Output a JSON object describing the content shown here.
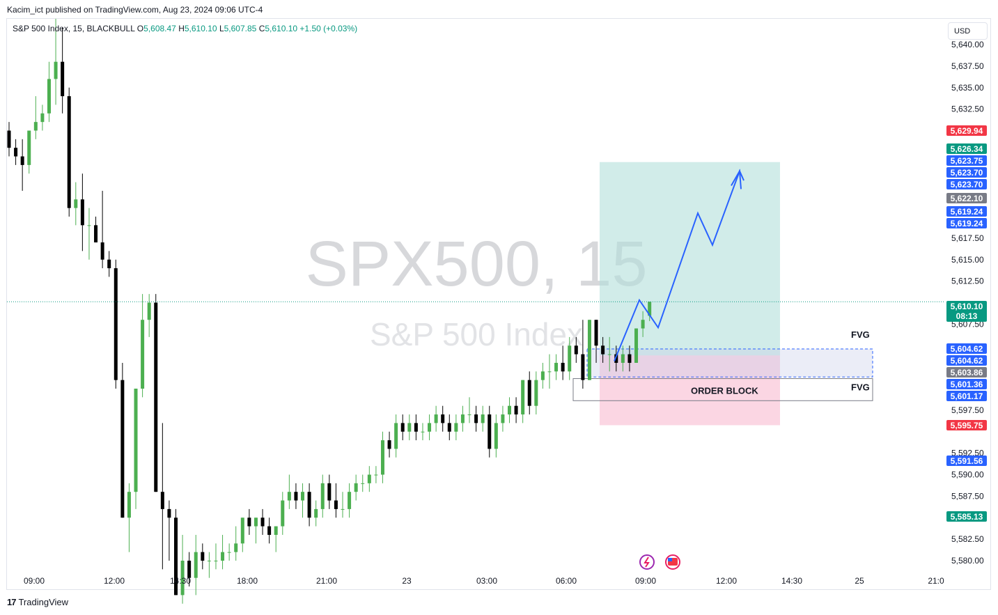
{
  "header": {
    "caption": "Kacim_ict published on TradingView.com, Aug 23, 2024 09:06 UTC-4",
    "symbol": "S&P 500 Index, 15, BLACKBULL",
    "o_label": "O",
    "o_value": "5,608.47",
    "h_label": "H",
    "h_value": "5,610.10",
    "l_label": "L",
    "l_value": "5,607.85",
    "c_label": "C",
    "c_value": "5,610.10",
    "change": "+1.50 (+0.03%)"
  },
  "currency_button": "USD",
  "footer": {
    "brand": "TradingView",
    "logo": "tv-logo-icon"
  },
  "watermark": {
    "line1": "SPX500, 15",
    "line2": "S&P 500 Index"
  },
  "chart_data": {
    "type": "candlestick",
    "symbol": "SPX500",
    "interval": "15",
    "y_range": [
      5578.5,
      5643.0
    ],
    "y_ticks": [
      "5,640.00",
      "5,637.50",
      "5,635.00",
      "5,632.50",
      "5,617.50",
      "5,615.00",
      "5,612.50",
      "5,607.50",
      "5,597.50",
      "5,592.50",
      "5,590.00",
      "5,587.50",
      "5,582.50",
      "5,580.00"
    ],
    "x_ticks": [
      "09:00",
      "12:00",
      "14:30",
      "18:00",
      "21:00",
      "23",
      "03:00",
      "06:00",
      "09:00",
      "12:00",
      "14:30",
      "25",
      "21:0"
    ],
    "candles": [
      [
        5630,
        5631,
        5627,
        5628
      ],
      [
        5628,
        5629,
        5626,
        5627
      ],
      [
        5627,
        5629,
        5623,
        5626
      ],
      [
        5626,
        5630,
        5625,
        5630
      ],
      [
        5630,
        5634,
        5629,
        5631
      ],
      [
        5631,
        5633,
        5630,
        5632
      ],
      [
        5632,
        5638,
        5631,
        5636
      ],
      [
        5636,
        5643,
        5633,
        5638
      ],
      [
        5638,
        5642,
        5632,
        5634
      ],
      [
        5634,
        5635,
        5620,
        5621
      ],
      [
        5621,
        5624,
        5619,
        5622
      ],
      [
        5622,
        5625,
        5616,
        5619
      ],
      [
        5619,
        5621,
        5615,
        5619
      ],
      [
        5619,
        5620,
        5617,
        5617
      ],
      [
        5617,
        5623,
        5614,
        5615
      ],
      [
        5615,
        5616,
        5613,
        5614
      ],
      [
        5614,
        5615,
        5600,
        5601
      ],
      [
        5601,
        5603,
        5585,
        5585
      ],
      [
        5585,
        5589,
        5581,
        5588
      ],
      [
        5588,
        5600,
        5586,
        5600
      ],
      [
        5600,
        5611,
        5599,
        5608
      ],
      [
        5608,
        5611,
        5606,
        5610
      ],
      [
        5610,
        5611,
        5588,
        5588
      ],
      [
        5588,
        5596,
        5579,
        5586
      ],
      [
        5586,
        5587,
        5580,
        5585
      ],
      [
        5585,
        5586,
        5576,
        5576
      ],
      [
        5576,
        5583,
        5575,
        5580
      ],
      [
        5580,
        5581,
        5577,
        5578
      ],
      [
        5578,
        5583,
        5576,
        5581
      ],
      [
        5581,
        5582,
        5579,
        5580
      ],
      [
        5580,
        5581,
        5578,
        5580
      ],
      [
        5580,
        5582,
        5579,
        5580
      ],
      [
        5580,
        5583,
        5579,
        5581
      ],
      [
        5581,
        5582,
        5580,
        5581
      ],
      [
        5581,
        5584,
        5580,
        5582
      ],
      [
        5582,
        5585,
        5581,
        5585
      ],
      [
        5585,
        5586,
        5583,
        5584
      ],
      [
        5584,
        5585,
        5582,
        5585
      ],
      [
        5585,
        5586,
        5583,
        5584
      ],
      [
        5584,
        5585,
        5582,
        5583
      ],
      [
        5583,
        5584,
        5581,
        5584
      ],
      [
        5584,
        5588,
        5583,
        5587
      ],
      [
        5587,
        5590,
        5586,
        5588
      ],
      [
        5588,
        5589,
        5586,
        5587
      ],
      [
        5587,
        5589,
        5585,
        5588
      ],
      [
        5588,
        5589,
        5584,
        5585
      ],
      [
        5585,
        5587,
        5584,
        5586
      ],
      [
        5586,
        5590,
        5585,
        5589
      ],
      [
        5589,
        5590,
        5586,
        5587
      ],
      [
        5587,
        5589,
        5585,
        5586
      ],
      [
        5586,
        5588,
        5585,
        5586
      ],
      [
        5586,
        5589,
        5585,
        5588
      ],
      [
        5588,
        5590,
        5587,
        5589
      ],
      [
        5589,
        5590,
        5588,
        5589
      ],
      [
        5589,
        5591,
        5588,
        5590
      ],
      [
        5590,
        5591,
        5589,
        5590
      ],
      [
        5590,
        5595,
        5589,
        5594
      ],
      [
        5594,
        5595,
        5592,
        5593
      ],
      [
        5593,
        5597,
        5592,
        5596
      ],
      [
        5596,
        5597,
        5594,
        5595
      ],
      [
        5595,
        5597,
        5594,
        5596
      ],
      [
        5596,
        5597,
        5594,
        5595
      ],
      [
        5595,
        5596,
        5594,
        5595
      ],
      [
        5595,
        5597,
        5594,
        5596
      ],
      [
        5596,
        5598,
        5595,
        5597
      ],
      [
        5597,
        5598,
        5595,
        5596
      ],
      [
        5596,
        5597,
        5594,
        5595
      ],
      [
        5595,
        5597,
        5594,
        5596
      ],
      [
        5596,
        5598,
        5595,
        5597
      ],
      [
        5597,
        5599,
        5596,
        5597
      ],
      [
        5597,
        5598,
        5595,
        5596
      ],
      [
        5596,
        5598,
        5595,
        5597
      ],
      [
        5597,
        5598,
        5592,
        5593
      ],
      [
        5593,
        5597,
        5592,
        5596
      ],
      [
        5596,
        5598,
        5595,
        5597
      ],
      [
        5597,
        5599,
        5596,
        5598
      ],
      [
        5598,
        5599,
        5596,
        5597
      ],
      [
        5597,
        5601,
        5596,
        5601
      ],
      [
        5601,
        5602,
        5597,
        5598
      ],
      [
        5598,
        5602,
        5597,
        5601
      ],
      [
        5601,
        5603,
        5600,
        5602
      ],
      [
        5602,
        5604,
        5600,
        5602
      ],
      [
        5602,
        5604,
        5601,
        5603
      ],
      [
        5603,
        5605,
        5601,
        5602
      ],
      [
        5602,
        5606,
        5601,
        5605
      ],
      [
        5605,
        5606,
        5603,
        5604
      ],
      [
        5604,
        5608,
        5600,
        5601
      ],
      [
        5601,
        5608,
        5601,
        5608
      ],
      [
        5608,
        5608,
        5603,
        5605
      ],
      [
        5605,
        5606,
        5603,
        5604
      ],
      [
        5604,
        5606,
        5602,
        5604
      ],
      [
        5604,
        5605,
        5602,
        5603
      ],
      [
        5603,
        5605,
        5602,
        5604
      ],
      [
        5604,
        5605,
        5602,
        5603
      ],
      [
        5603,
        5607,
        5603,
        5607
      ],
      [
        5607,
        5609,
        5606,
        5608
      ],
      [
        5608.47,
        5610.1,
        5607.85,
        5610.1
      ]
    ],
    "price_tags": [
      {
        "label": "5,629.94",
        "value": 5629.94,
        "color": "#f23645"
      },
      {
        "label": "5,626.34",
        "value": 5626.34,
        "color": "#089981"
      },
      {
        "label": "5,623.75",
        "value": 5623.75,
        "color": "#2962ff"
      },
      {
        "label": "5,623.70",
        "value": 5623.7,
        "color": "#2962ff"
      },
      {
        "label": "5,623.70",
        "value": 5623.7,
        "color": "#2962ff"
      },
      {
        "label": "5,622.10",
        "value": 5622.1,
        "color": "#787b86"
      },
      {
        "label": "5,619.24",
        "value": 5619.24,
        "color": "#2962ff"
      },
      {
        "label": "5,619.24",
        "value": 5619.24,
        "color": "#2962ff"
      },
      {
        "label": "5,610.10",
        "value": 5610.1,
        "color": "#089981",
        "sub": "08:13"
      },
      {
        "label": "5,604.62",
        "value": 5604.62,
        "color": "#2962ff"
      },
      {
        "label": "5,604.62",
        "value": 5604.62,
        "color": "#2962ff"
      },
      {
        "label": "5,603.86",
        "value": 5603.86,
        "color": "#787b86"
      },
      {
        "label": "5,601.36",
        "value": 5601.36,
        "color": "#2962ff"
      },
      {
        "label": "5,601.17",
        "value": 5601.17,
        "color": "#2962ff"
      },
      {
        "label": "5,595.75",
        "value": 5595.75,
        "color": "#f23645"
      },
      {
        "label": "5,591.56",
        "value": 5591.56,
        "color": "#2962ff"
      },
      {
        "label": "5,585.13",
        "value": 5585.13,
        "color": "#089981"
      }
    ],
    "current_price": 5610.1,
    "position": {
      "entry": 5603.86,
      "target": 5626.34,
      "stop": 5595.75
    },
    "annotations": [
      {
        "label": "FVG",
        "top": 5604.62,
        "bottom": 5601.36
      },
      {
        "label": "ORDER BLOCK",
        "top": 5601.17,
        "bottom": 5598.6
      },
      {
        "label": "FVG"
      }
    ],
    "projection": [
      5603.2,
      5610.3,
      5607.1,
      5620.4,
      5616.7,
      5625.3,
      5624.2
    ],
    "colors": {
      "up": "#4caf50",
      "down": "#000000",
      "target_zone": "#b2dfdb",
      "stop_zone": "#f8bbd0",
      "projection": "#2962ff"
    },
    "grid": false
  }
}
